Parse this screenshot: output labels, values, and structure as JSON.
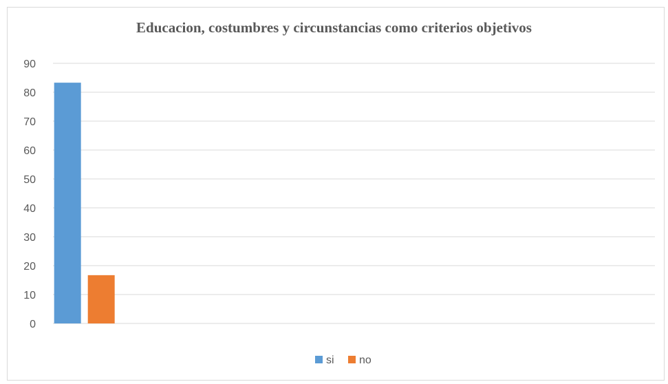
{
  "chart_data": {
    "type": "bar",
    "title": "Educacion, costumbres y circunstancias como criterios objetivos",
    "categories": [
      ""
    ],
    "series": [
      {
        "name": "si",
        "values": [
          83.3
        ],
        "color": "#5b9bd5"
      },
      {
        "name": "no",
        "values": [
          16.7
        ],
        "color": "#ed7d31"
      }
    ],
    "ylim": [
      0,
      90
    ],
    "yticks": [
      "0",
      "10",
      "20",
      "30",
      "40",
      "50",
      "60",
      "70",
      "80",
      "90"
    ],
    "grid": true,
    "legend_position": "bottom"
  }
}
